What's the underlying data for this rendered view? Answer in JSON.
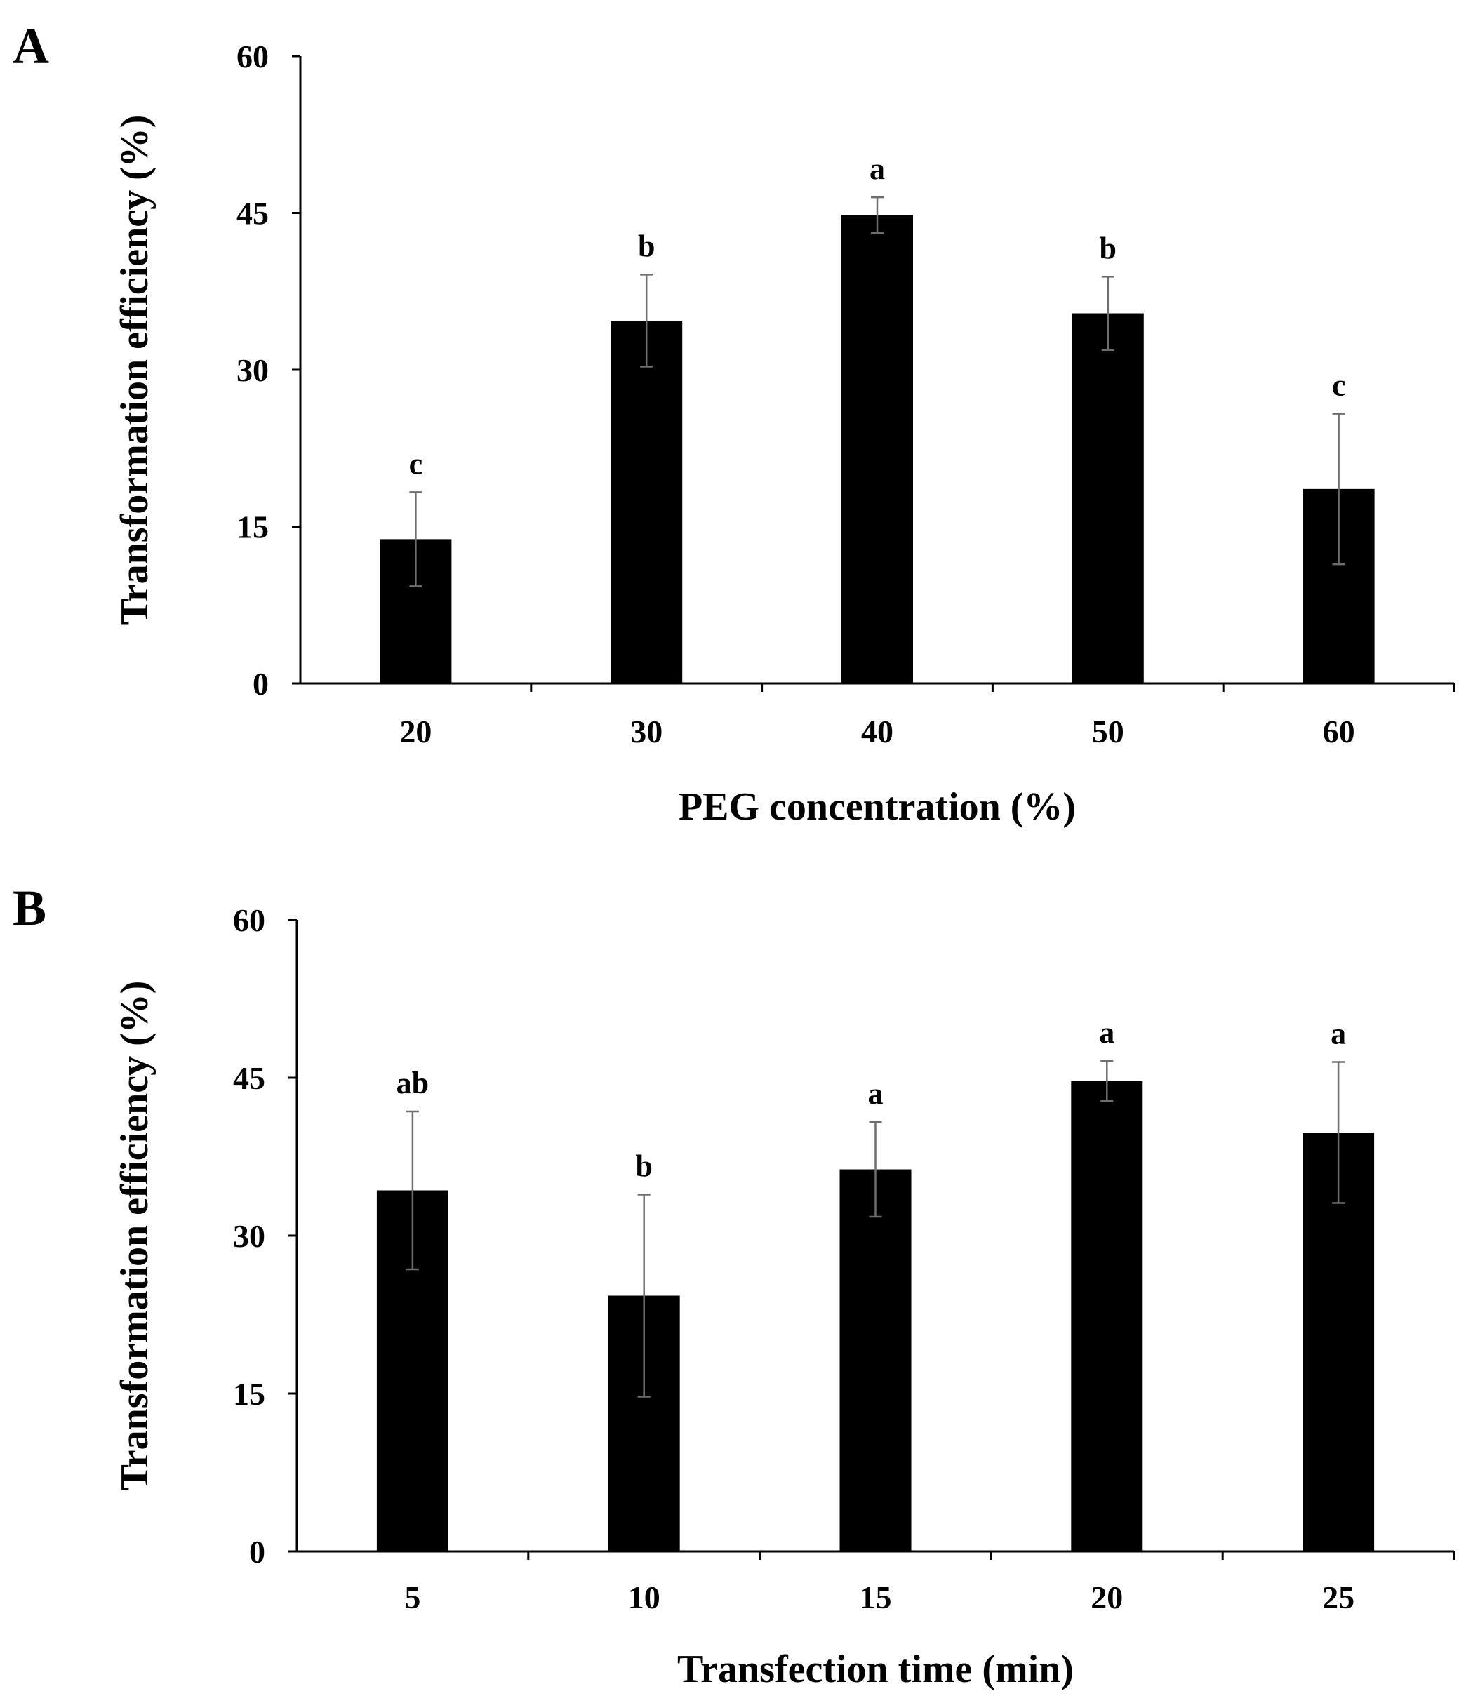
{
  "chart_data": [
    {
      "panel_label": "A",
      "type": "bar",
      "title": "",
      "xlabel": "PEG concentration (%)",
      "ylabel": "Transformation efficiency (%)",
      "ylim": [
        0,
        60
      ],
      "yticks": [
        0,
        15,
        30,
        45,
        60
      ],
      "grid": false,
      "categories": [
        "20",
        "30",
        "40",
        "50",
        "60"
      ],
      "values": [
        13.8,
        34.7,
        44.8,
        35.4,
        18.6
      ],
      "errors": [
        4.5,
        4.4,
        1.7,
        3.5,
        7.2
      ],
      "significance": [
        "c",
        "b",
        "a",
        "b",
        "c"
      ],
      "colors": {
        "bar": "#000000",
        "error": "#6e6e6e"
      }
    },
    {
      "panel_label": "B",
      "type": "bar",
      "title": "",
      "xlabel": "Transfection time (min)",
      "ylabel": "Transformation efficiency (%)",
      "ylim": [
        0,
        60
      ],
      "yticks": [
        0,
        15,
        30,
        45,
        60
      ],
      "grid": false,
      "categories": [
        "5",
        "10",
        "15",
        "20",
        "25"
      ],
      "values": [
        34.3,
        24.3,
        36.3,
        44.7,
        39.8
      ],
      "errors": [
        7.5,
        9.6,
        4.5,
        1.9,
        6.7
      ],
      "significance": [
        "ab",
        "b",
        "a",
        "a",
        "a"
      ],
      "colors": {
        "bar": "#000000",
        "error": "#6e6e6e"
      }
    }
  ]
}
